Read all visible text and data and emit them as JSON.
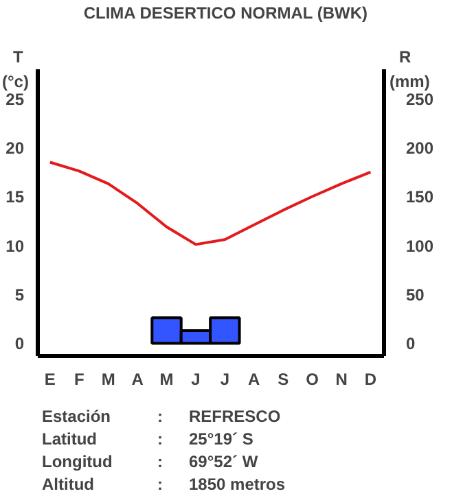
{
  "chart_data": {
    "type": "bar",
    "title": "CLIMA DESERTICO NORMAL (BWK)",
    "ylabel": "T\n(°c)",
    "y2label": "R\n(mm)",
    "categories": [
      "E",
      "F",
      "M",
      "A",
      "M",
      "J",
      "J",
      "A",
      "S",
      "O",
      "N",
      "D"
    ],
    "series": [
      {
        "type": "line",
        "color": "#e31a1c",
        "values": [
          18.5,
          17.6,
          16.3,
          14.3,
          11.9,
          10.1,
          10.6,
          12.1,
          13.6,
          15.0,
          16.3,
          17.5
        ]
      },
      {
        "axis": "y2",
        "color": "#3355ff",
        "values": [
          0,
          0,
          0,
          0,
          26,
          13,
          26,
          0,
          0,
          0,
          0,
          0
        ]
      }
    ],
    "ylim": [
      -1.3,
      28
    ],
    "yticks": [
      0,
      5,
      10,
      15,
      20,
      25
    ],
    "y2lim": [
      -13,
      280
    ],
    "y2ticks": [
      0,
      50,
      100,
      150,
      200,
      250
    ],
    "grid": false,
    "marker": "none",
    "line_style": "solid",
    "annotations": [
      "Estación : REFRESCO",
      "Latitud : 25°19´ S",
      "Longitud : 69°52´ W",
      "Altitud : 1850 metros"
    ]
  }
}
